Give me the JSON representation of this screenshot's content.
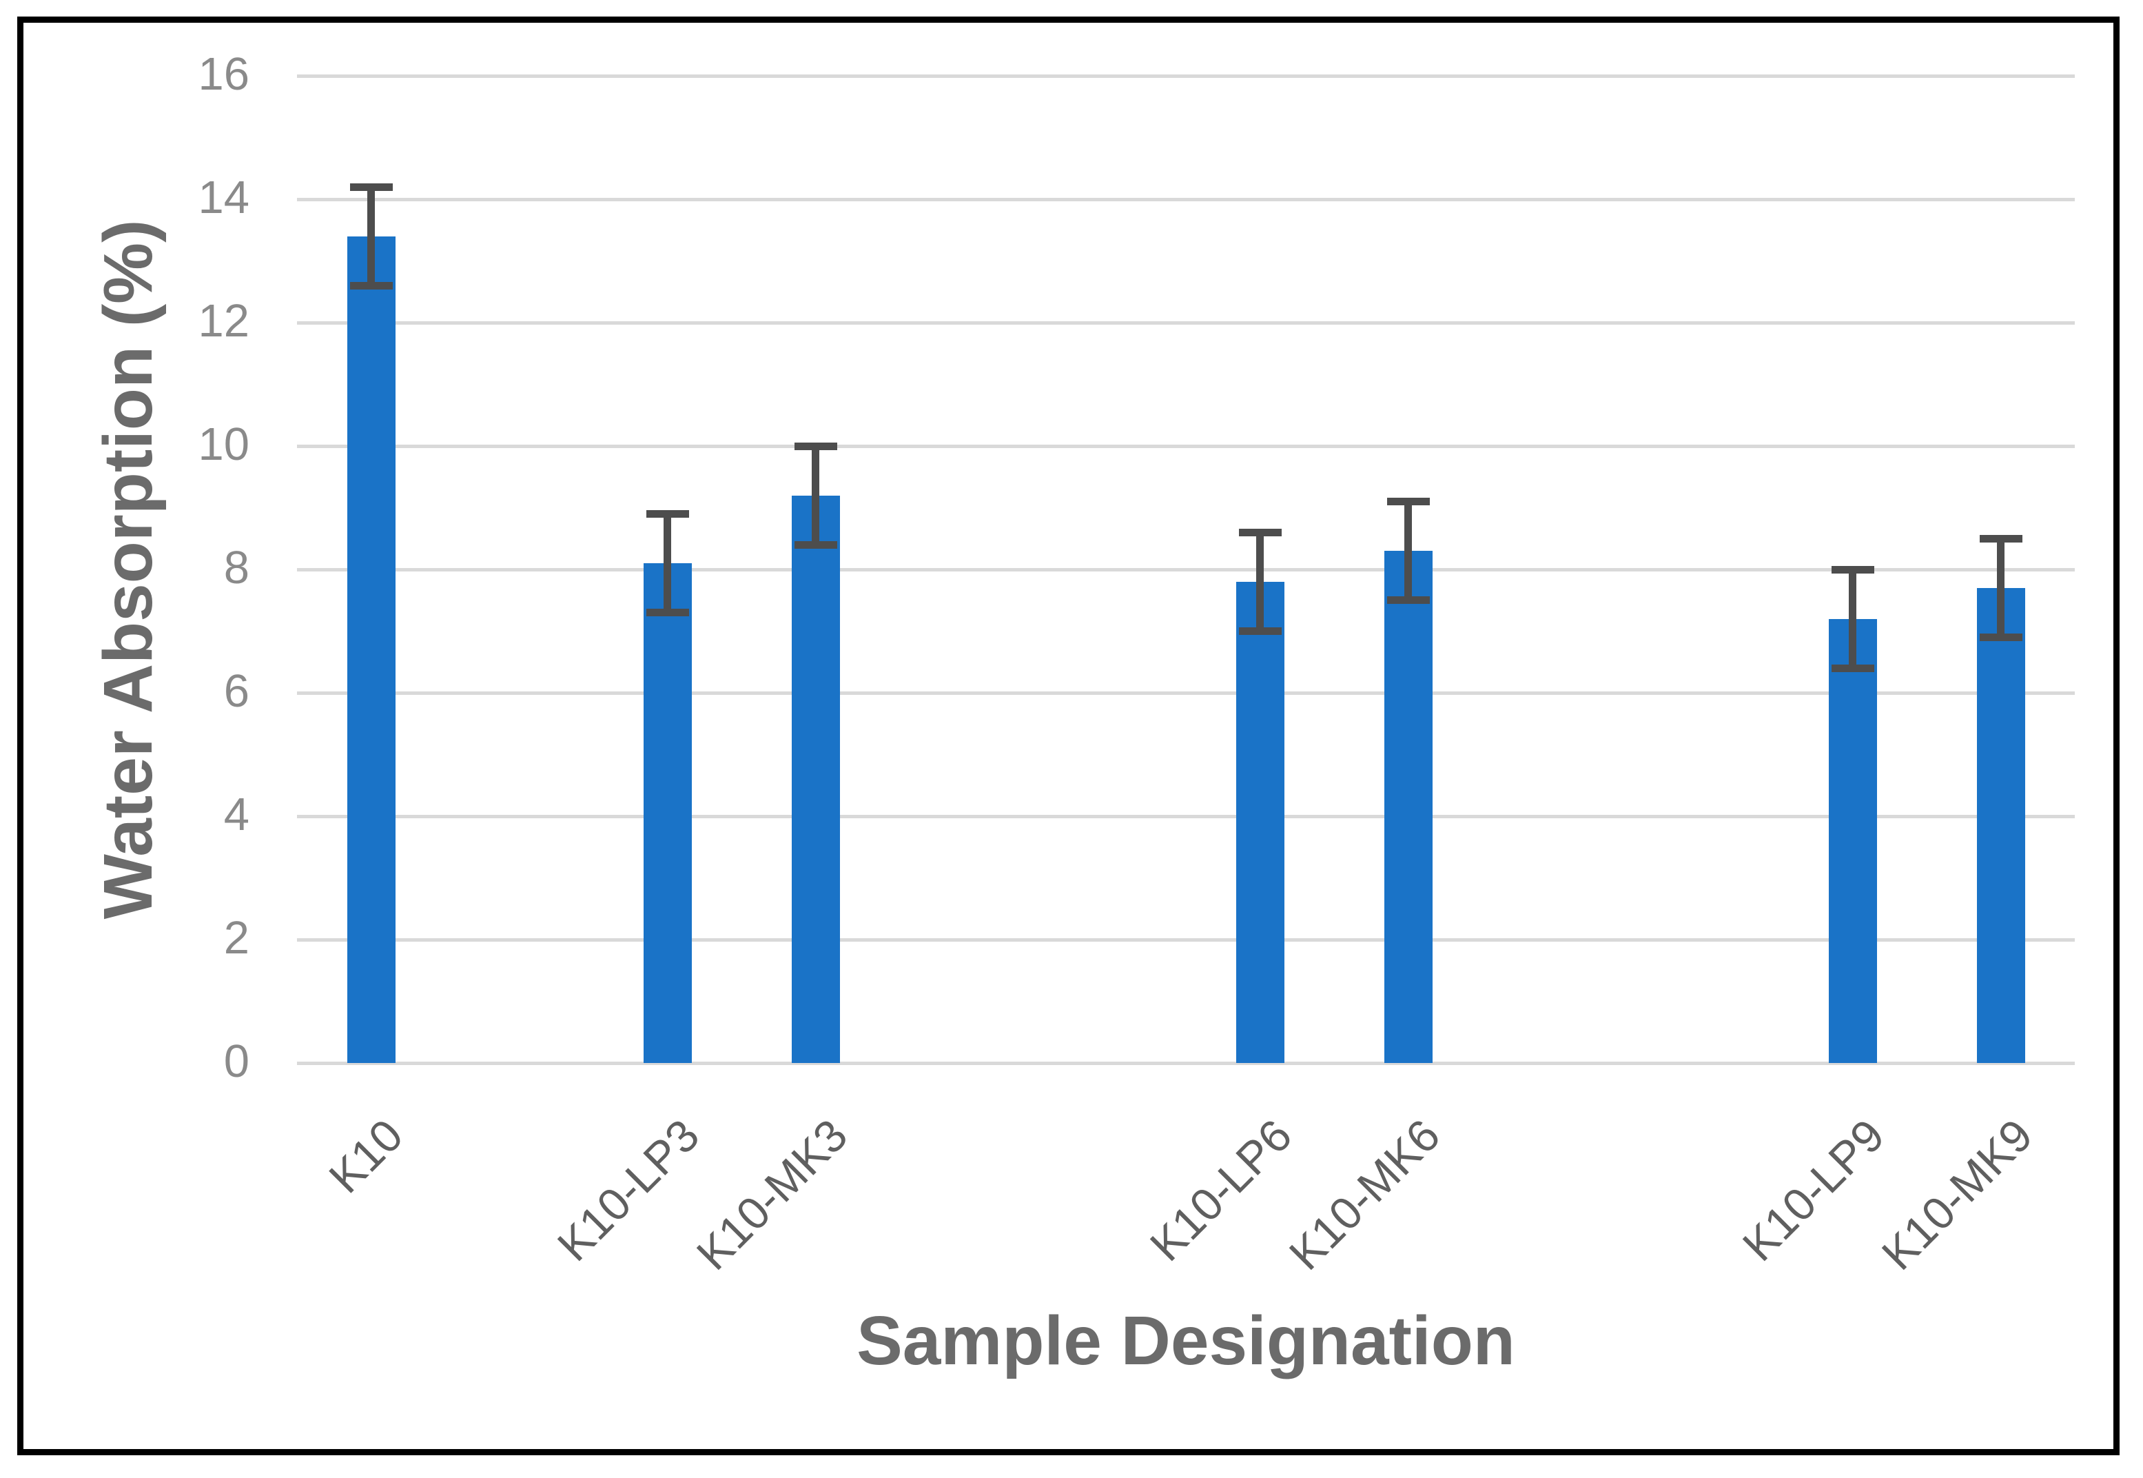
{
  "chart_data": {
    "type": "bar",
    "title": "",
    "xlabel": "Sample Designation",
    "ylabel": "Water Absorption (%)",
    "categories": [
      "K10",
      "K10-LP3",
      "K10-MK3",
      "K10-LP6",
      "K10-MK6",
      "K10-LP9",
      "K10-MK9"
    ],
    "values": [
      13.4,
      8.1,
      9.2,
      7.8,
      8.3,
      7.2,
      7.7
    ],
    "error_bars": [
      0.8,
      0.8,
      0.8,
      0.8,
      0.8,
      0.8,
      0.8
    ],
    "slot_indices": [
      0,
      2,
      3,
      6,
      7,
      10,
      11
    ],
    "n_slots": 12,
    "ylim": [
      0,
      16
    ],
    "ytick_step": 2,
    "yticks": [
      "0",
      "2",
      "4",
      "6",
      "8",
      "10",
      "12",
      "14",
      "16"
    ],
    "grid": true,
    "legend": false,
    "colors": {
      "bar": "#1a73c7",
      "gridline": "#d9d9d9",
      "error_bar": "#4d4d4d",
      "axis_title": "#6b6b6b",
      "tick_label": "#8a8a8a",
      "category_label": "#5f5f5f",
      "border": "#000000"
    }
  }
}
